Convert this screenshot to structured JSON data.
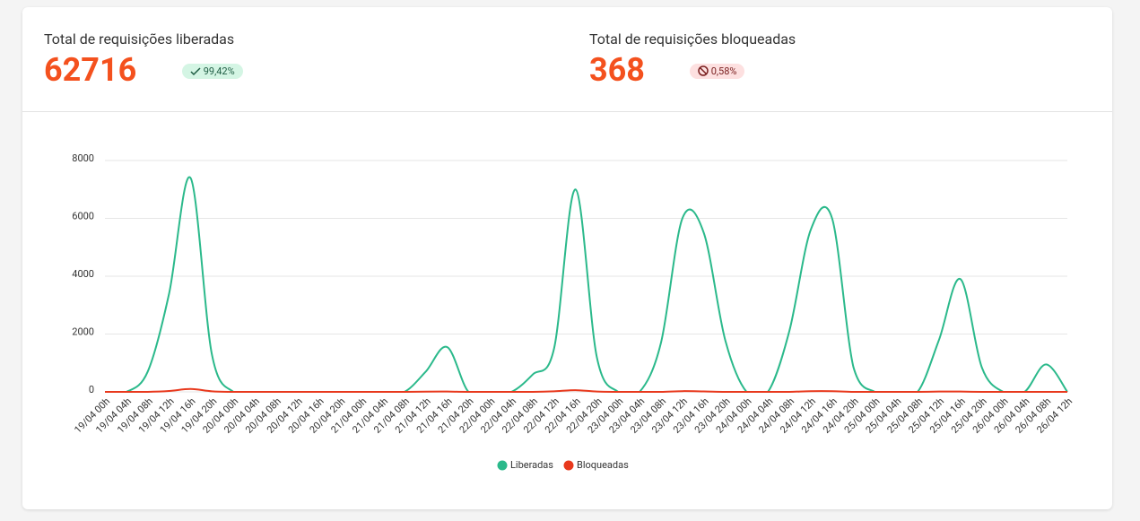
{
  "stats": [
    {
      "label": "Total de requisições liberadas",
      "value": 62716,
      "badge": "99,42%"
    },
    {
      "label": "Total de requisições bloqueadas",
      "value": 368,
      "badge": "0,58%"
    }
  ],
  "chart_data": {
    "type": "line",
    "categories": [
      "19/04 00h",
      "19/04 04h",
      "19/04 08h",
      "19/04 12h",
      "19/04 16h",
      "19/04 20h",
      "20/04 00h",
      "20/04 04h",
      "20/04 08h",
      "20/04 12h",
      "20/04 16h",
      "20/04 20h",
      "21/04 00h",
      "21/04 04h",
      "21/04 08h",
      "21/04 12h",
      "21/04 16h",
      "21/04 20h",
      "22/04 00h",
      "22/04 04h",
      "22/04 08h",
      "22/04 12h",
      "22/04 16h",
      "22/04 20h",
      "23/04 00h",
      "23/04 04h",
      "23/04 08h",
      "23/04 12h",
      "23/04 16h",
      "23/04 20h",
      "24/04 00h",
      "24/04 04h",
      "24/04 08h",
      "24/04 12h",
      "24/04 16h",
      "24/04 20h",
      "25/04 00h",
      "25/04 04h",
      "25/04 08h",
      "25/04 12h",
      "25/04 16h",
      "25/04 20h",
      "26/04 00h",
      "26/04 04h",
      "26/04 08h",
      "26/04 12h"
    ],
    "series": [
      {
        "name": "Liberadas",
        "color": "#2bb98b",
        "values": [
          0,
          0,
          700,
          3400,
          7400,
          1300,
          0,
          0,
          0,
          0,
          0,
          0,
          0,
          0,
          0,
          700,
          1550,
          0,
          0,
          0,
          600,
          1500,
          7000,
          1200,
          0,
          0,
          1700,
          6000,
          5500,
          1800,
          0,
          0,
          2100,
          5600,
          6000,
          850,
          0,
          0,
          0,
          1800,
          3900,
          850,
          0,
          0,
          950,
          0
        ]
      },
      {
        "name": "Bloqueadas",
        "color": "#e8391d",
        "values": [
          0,
          0,
          0,
          30,
          100,
          20,
          0,
          0,
          0,
          0,
          0,
          0,
          0,
          0,
          0,
          8,
          10,
          0,
          0,
          0,
          0,
          20,
          60,
          10,
          0,
          0,
          0,
          25,
          15,
          0,
          0,
          0,
          0,
          25,
          25,
          0,
          0,
          0,
          0,
          10,
          10,
          0,
          0,
          0,
          0,
          0
        ]
      }
    ],
    "ylim": [
      0,
      8000
    ],
    "yticks": [
      0,
      2000,
      4000,
      6000,
      8000
    ],
    "grid": true,
    "legend": "bottom"
  }
}
